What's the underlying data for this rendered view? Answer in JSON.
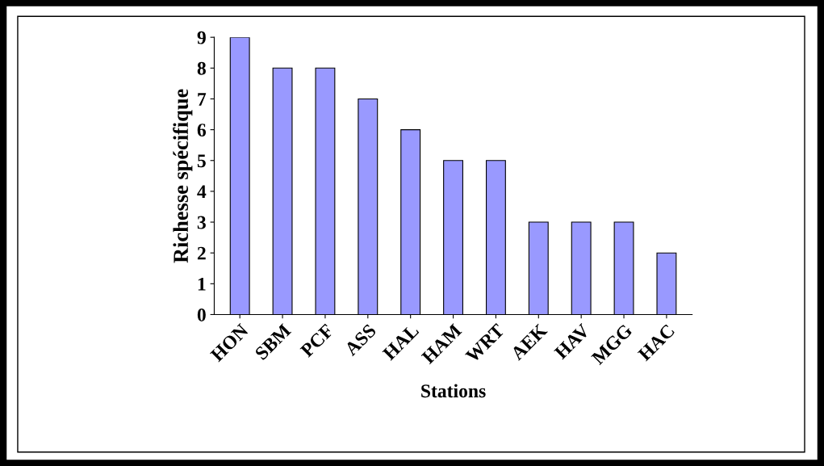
{
  "chart_data": {
    "type": "bar",
    "xlabel": "Stations",
    "ylabel": "Richesse spécifique",
    "categories": [
      "HON",
      "SBM",
      "PCF",
      "ASS",
      "HAL",
      "HAM",
      "WRT",
      "AEK",
      "HAV",
      "MGG",
      "HAC"
    ],
    "values": [
      9,
      8,
      8,
      7,
      6,
      5,
      5,
      3,
      3,
      3,
      2
    ],
    "color": "#9999ff",
    "ylim": [
      0,
      9
    ],
    "yticks": [
      0,
      1,
      2,
      3,
      4,
      5,
      6,
      7,
      8,
      9
    ],
    "grid": false,
    "legend": false
  }
}
